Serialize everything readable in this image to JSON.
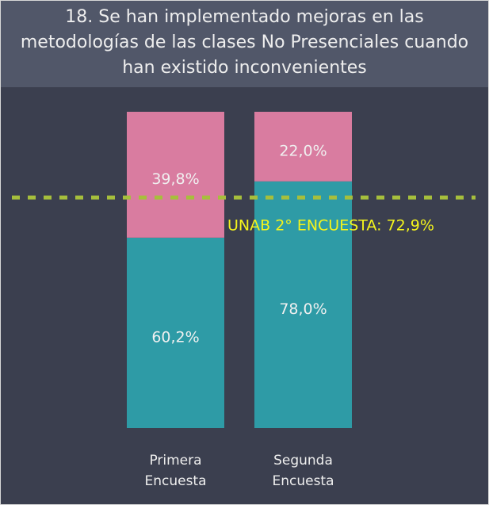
{
  "chart_data": {
    "type": "stacked_bar",
    "title": "18. Se han implementado mejoras en las metodologías de las clases No Presenciales cuando han existido inconvenientes",
    "categories": [
      "Primera Encuesta",
      "Segunda Encuesta"
    ],
    "series": [
      {
        "color": "#2e9ba6",
        "values": [
          60.2,
          78.0
        ],
        "value_labels": [
          "60,2%",
          "78,0%"
        ]
      },
      {
        "color": "#d97ca0",
        "values": [
          39.8,
          22.0
        ],
        "value_labels": [
          "39,8%",
          "22,0%"
        ]
      }
    ],
    "ylim": [
      0,
      100
    ],
    "reference_line": {
      "value": 72.9,
      "label": "UNAB 2° ENCUESTA: 72,9%",
      "color": "#a6bf3c",
      "label_color": "#f4f41c"
    }
  }
}
